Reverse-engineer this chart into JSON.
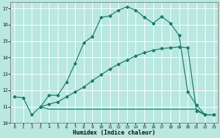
{
  "title": "",
  "xlabel": "Humidex (Indice chaleur)",
  "background_color": "#b8e8e0",
  "grid_color": "#ffffff",
  "line_color": "#1a7a6e",
  "xlim": [
    -0.5,
    23.5
  ],
  "ylim": [
    10,
    17.4
  ],
  "yticks": [
    10,
    11,
    12,
    13,
    14,
    15,
    16,
    17
  ],
  "xticks": [
    0,
    1,
    2,
    3,
    4,
    5,
    6,
    7,
    8,
    9,
    10,
    11,
    12,
    13,
    14,
    15,
    16,
    17,
    18,
    19,
    20,
    21,
    22,
    23
  ],
  "curve1_x": [
    0,
    1,
    2,
    3,
    4,
    5,
    6,
    7,
    8,
    9,
    10,
    11,
    12,
    13,
    14,
    15,
    16,
    17,
    18,
    19,
    20,
    21,
    22,
    23
  ],
  "curve1_y": [
    11.6,
    11.55,
    10.5,
    11.0,
    11.7,
    11.7,
    12.5,
    13.65,
    14.9,
    15.3,
    16.45,
    16.55,
    16.9,
    17.1,
    16.9,
    16.45,
    16.1,
    16.5,
    16.1,
    15.35,
    11.9,
    11.1,
    10.5,
    10.5
  ],
  "diag1_x": [
    3,
    4,
    5,
    6,
    7,
    8,
    9,
    10,
    11,
    12,
    13,
    14,
    15,
    16,
    17,
    18,
    19,
    20,
    21,
    22,
    23
  ],
  "diag1_y": [
    11.0,
    11.15,
    11.3,
    11.6,
    11.9,
    12.2,
    12.6,
    12.95,
    13.3,
    13.6,
    13.85,
    14.1,
    14.3,
    14.45,
    14.55,
    14.6,
    14.65,
    14.6,
    10.75,
    10.5,
    10.5
  ],
  "flat_x": [
    3,
    4,
    5,
    6,
    7,
    8,
    9,
    10,
    11,
    12,
    13,
    14,
    15,
    16,
    17,
    18,
    19,
    20,
    21,
    22,
    23
  ],
  "flat_y": [
    11.0,
    10.85,
    10.85,
    10.85,
    10.85,
    10.85,
    10.85,
    10.85,
    10.85,
    10.85,
    10.85,
    10.85,
    10.85,
    10.85,
    10.85,
    10.85,
    10.85,
    10.85,
    10.85,
    10.5,
    10.5
  ]
}
